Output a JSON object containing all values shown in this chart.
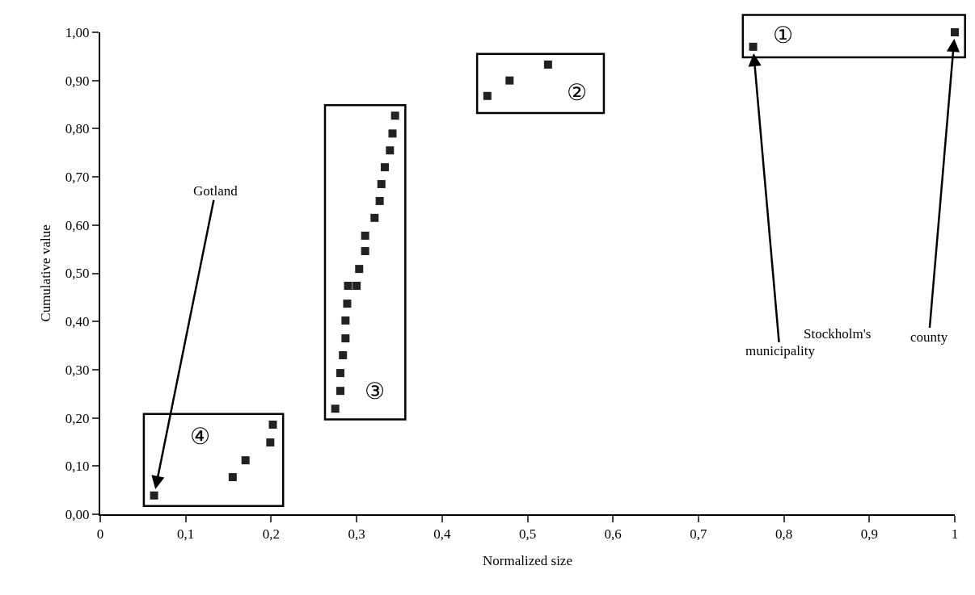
{
  "chart_data": {
    "type": "scatter",
    "xlabel": "Normalized size",
    "ylabel": "Cumulative value",
    "xlim": [
      0,
      1
    ],
    "ylim": [
      0,
      1
    ],
    "xticks": [
      0,
      {
        "value": 0.1,
        "label": "0,1"
      },
      {
        "value": 0.2,
        "label": "0,2"
      },
      {
        "value": 0.3,
        "label": "0,3"
      },
      {
        "value": 0.4,
        "label": "0,4"
      },
      {
        "value": 0.5,
        "label": "0,5"
      },
      {
        "value": 0.6,
        "label": "0,6"
      },
      {
        "value": 0.7,
        "label": "0,7"
      },
      {
        "value": 0.8,
        "label": "0,8"
      },
      {
        "value": 0.9,
        "label": "0,9"
      },
      1
    ],
    "yticks": [
      {
        "value": 0,
        "label": "0,00"
      },
      {
        "value": 0.1,
        "label": "0,10"
      },
      {
        "value": 0.2,
        "label": "0,20"
      },
      {
        "value": 0.3,
        "label": "0,30"
      },
      {
        "value": 0.4,
        "label": "0,40"
      },
      {
        "value": 0.5,
        "label": "0,50"
      },
      {
        "value": 0.6,
        "label": "0,60"
      },
      {
        "value": 0.7,
        "label": "0,70"
      },
      {
        "value": 0.8,
        "label": "0,80"
      },
      {
        "value": 0.9,
        "label": "0,90"
      },
      {
        "value": 1,
        "label": "1,00"
      }
    ],
    "grid": false,
    "marker": "square",
    "series": [
      {
        "color": "#222222",
        "x": [
          0.764,
          1.0
        ],
        "values": [
          0.97,
          1.0
        ]
      },
      {
        "color": "#222222",
        "x": [
          0.453,
          0.479,
          0.524
        ],
        "values": [
          0.868,
          0.9,
          0.933
        ]
      },
      {
        "color": "#222222",
        "x": [
          0.275,
          0.281,
          0.281,
          0.284,
          0.287,
          0.287,
          0.289,
          0.29,
          0.3,
          0.303,
          0.31,
          0.31,
          0.321,
          0.327,
          0.329,
          0.333,
          0.339,
          0.342,
          0.345
        ],
        "values": [
          0.219,
          0.256,
          0.293,
          0.33,
          0.365,
          0.402,
          0.437,
          0.474,
          0.474,
          0.509,
          0.546,
          0.578,
          0.615,
          0.65,
          0.685,
          0.72,
          0.755,
          0.79,
          0.827
        ]
      },
      {
        "color": "#222222",
        "x": [
          0.063,
          0.155,
          0.17,
          0.199,
          0.202
        ],
        "values": [
          0.039,
          0.077,
          0.112,
          0.149,
          0.186
        ]
      }
    ],
    "annotations": [
      "①",
      "②",
      "③",
      "④",
      {
        "text": "Gotland",
        "x": 0.063,
        "y": 0.039
      },
      {
        "text": "municipality",
        "x": 0.764,
        "y": 0.97
      },
      {
        "text": "county",
        "x": 1.0,
        "y": 1.0
      },
      "Stockholm's"
    ]
  }
}
